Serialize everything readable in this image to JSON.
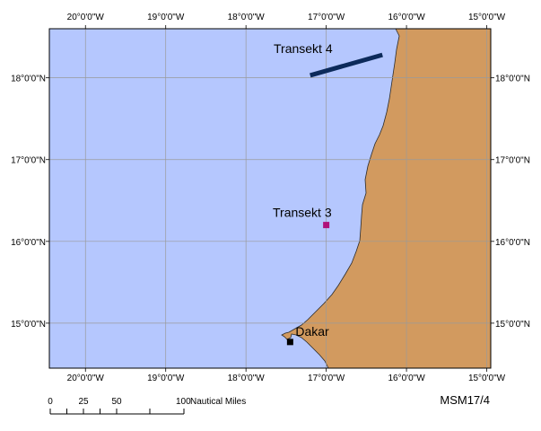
{
  "colors": {
    "ocean": "#b5c7fe",
    "land": "#d29a5f",
    "coastline": "#2b2b2b",
    "grid": "#9a9a9a",
    "transect4": "#0c2a5a",
    "transect3": "#b0127a",
    "dakar_marker": "#000000"
  },
  "axes": {
    "lon_ticks": [
      "20°0'0\"W",
      "19°0'0\"W",
      "18°0'0\"W",
      "17°0'0\"W",
      "16°0'0\"W",
      "15°0'0\"W"
    ],
    "lat_ticks": [
      "18°0'0\"N",
      "17°0'0\"N",
      "16°0'0\"N",
      "15°0'0\"N"
    ]
  },
  "map": {
    "lon_range": [
      -20.45,
      -14.95
    ],
    "lat_range": [
      14.45,
      18.6
    ],
    "grid": true,
    "transect4": {
      "label": "Transekt 4",
      "start": {
        "lon": -17.2,
        "lat": 18.03
      },
      "end": {
        "lon": -16.3,
        "lat": 18.28
      }
    },
    "transect3": {
      "label": "Transekt 3",
      "point": {
        "lon": -17.0,
        "lat": 16.2
      }
    },
    "dakar": {
      "label": "Dakar",
      "point": {
        "lon": -17.45,
        "lat": 14.77
      }
    }
  },
  "scale_bar": {
    "ticks": [
      "0",
      "25",
      "50",
      "100"
    ],
    "unit": "Nautical Miles"
  },
  "cruise_label": "MSM17/4"
}
